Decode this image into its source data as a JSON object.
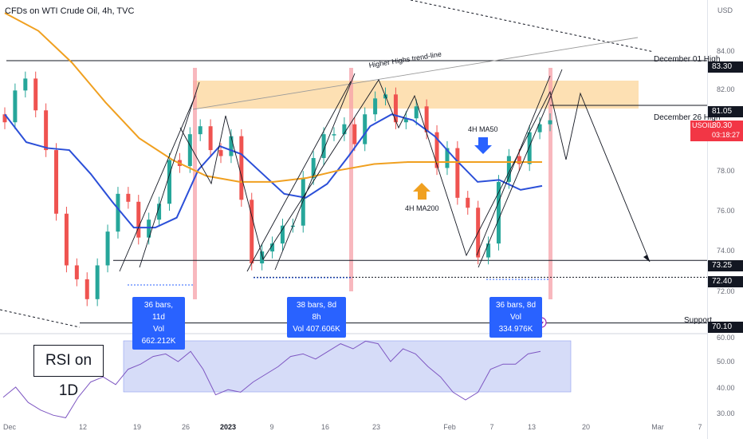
{
  "header": {
    "title": "CFDs on WTI Crude Oil, 4h, TVC",
    "currency": "USD"
  },
  "price_axis": {
    "ticks": [
      "84.00",
      "82.00",
      "78.00",
      "76.00",
      "74.00",
      "72.00"
    ],
    "tags": {
      "dec01": "83.30",
      "dec26": "81.05",
      "symbol": "USOIL",
      "last": "80.30",
      "countdown": "03:18:27",
      "low1": "73.25",
      "low2": "72.40",
      "support": "70.10"
    }
  },
  "rsi_axis": {
    "ticks": [
      "60.00",
      "50.00",
      "40.00",
      "30.00"
    ]
  },
  "time_axis": {
    "ticks": [
      "Dec",
      "12",
      "19",
      "26",
      "2023",
      "9",
      "16",
      "23",
      "Feb",
      "7",
      "13",
      "20",
      "Mar",
      "7"
    ]
  },
  "annotations": {
    "december_01_high": "December 01 High",
    "december_26_high": "December 26 High",
    "support": "Support",
    "trendline": "Higher Highs trend-line",
    "ma50": "4H MA50",
    "ma200": "4H MA200",
    "rsi_label": "RSI on 1D"
  },
  "measure_boxes": [
    {
      "bars": "36 bars, 11d",
      "vol": "Vol 662.212K"
    },
    {
      "bars": "38 bars, 8d 8h",
      "vol": "Vol 407.606K"
    },
    {
      "bars": "36 bars, 8d",
      "vol": "Vol 334.976K"
    }
  ],
  "colors": {
    "ma50": "#2b4fd8",
    "ma200": "#f0a020",
    "up": "#26a69a",
    "down": "#ef5350",
    "resistance_zone": "#fcd8a0",
    "rsi_zone": "#c5cdf5",
    "pink_marker": "#f5a0a8"
  },
  "chart_data": {
    "type": "candlestick",
    "title": "CFDs on WTI Crude Oil, 4h, TVC",
    "ylim": [
      69.5,
      86.3
    ],
    "levels": [
      {
        "name": "December 01 High",
        "value": 83.3
      },
      {
        "name": "December 26 High",
        "value": 81.05
      },
      {
        "value": 73.25
      },
      {
        "value": 72.4
      },
      {
        "name": "Support",
        "value": 70.1
      }
    ],
    "close_path": [
      [
        "Nov 29",
        80.2
      ],
      [
        "Nov 30",
        81.8
      ],
      [
        "Dec 1",
        82.4
      ],
      [
        "Dec 2",
        80.8
      ],
      [
        "Dec 5",
        78.8
      ],
      [
        "Dec 6",
        75.6
      ],
      [
        "Dec 7",
        73.0
      ],
      [
        "Dec 8",
        72.3
      ],
      [
        "Dec 9",
        71.3
      ],
      [
        "Dec 12",
        73.0
      ],
      [
        "Dec 13",
        74.7
      ],
      [
        "Dec 14",
        76.6
      ],
      [
        "Dec 15",
        76.2
      ],
      [
        "Dec 16",
        74.4
      ],
      [
        "Dec 19",
        75.3
      ],
      [
        "Dec 20",
        76.1
      ],
      [
        "Dec 21",
        78.3
      ],
      [
        "Dec 22",
        78.0
      ],
      [
        "Dec 23",
        79.6
      ],
      [
        "Dec 27",
        80.0
      ],
      [
        "Dec 28",
        78.8
      ],
      [
        "Dec 29",
        78.5
      ],
      [
        "Dec 30",
        79.5
      ],
      [
        "Jan 3",
        76.3
      ],
      [
        "Jan 4",
        73.1
      ],
      [
        "Jan 5",
        73.7
      ],
      [
        "Jan 6",
        74.1
      ],
      [
        "Jan 9",
        75.0
      ],
      [
        "Jan 10",
        75.0
      ],
      [
        "Jan 11",
        77.4
      ],
      [
        "Jan 12",
        78.4
      ],
      [
        "Jan 13",
        79.6
      ],
      [
        "Jan 16",
        79.6
      ],
      [
        "Jan 17",
        80.1
      ],
      [
        "Jan 18",
        79.1
      ],
      [
        "Jan 19",
        80.6
      ],
      [
        "Jan 20",
        81.4
      ],
      [
        "Jan 23",
        81.6
      ],
      [
        "Jan 24",
        80.2
      ],
      [
        "Jan 25",
        80.4
      ],
      [
        "Jan 26",
        81.0
      ],
      [
        "Jan 27",
        79.7
      ],
      [
        "Jan 30",
        77.9
      ],
      [
        "Jan 31",
        78.9
      ],
      [
        "Feb 1",
        76.4
      ],
      [
        "Feb 2",
        75.9
      ],
      [
        "Feb 3",
        73.4
      ],
      [
        "Feb 6",
        74.1
      ],
      [
        "Feb 7",
        77.2
      ],
      [
        "Feb 8",
        78.5
      ],
      [
        "Feb 9",
        78.1
      ],
      [
        "Feb 10",
        79.7
      ],
      [
        "Feb 13",
        80.1
      ],
      [
        "Feb 14",
        80.3
      ]
    ],
    "series": [
      {
        "name": "4H MA50",
        "values": [
          80.6,
          79.2,
          78.9,
          78.8,
          77.6,
          76.2,
          74.9,
          74.9,
          75.4,
          77.8,
          79.0,
          78.6,
          77.6,
          76.6,
          76.4,
          77.1,
          78.5,
          80.0,
          80.6,
          80.3,
          79.5,
          78.3,
          77.2,
          77.3,
          76.8,
          77.0
        ]
      },
      {
        "name": "4H MA200",
        "values": [
          85.7,
          84.8,
          83.2,
          81.2,
          79.4,
          78.3,
          77.5,
          77.2,
          77.2,
          77.4,
          77.8,
          78.1,
          78.2,
          78.2,
          78.2,
          78.2,
          78.2
        ]
      }
    ]
  }
}
